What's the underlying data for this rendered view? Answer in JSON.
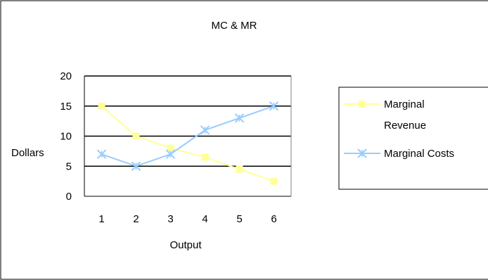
{
  "chart_data": {
    "type": "line",
    "title": "MC & MR",
    "xlabel": "Output",
    "ylabel": "Dollars",
    "categories": [
      "1",
      "2",
      "3",
      "4",
      "5",
      "6"
    ],
    "ylim": [
      0,
      20
    ],
    "yticks": [
      "0",
      "5",
      "10",
      "15",
      "20"
    ],
    "grid": "horizontal major gridlines",
    "legend_position": "right",
    "series": [
      {
        "name": "Marginal Revenue",
        "name_lines": [
          "Marginal",
          "Revenue"
        ],
        "values": [
          15,
          10,
          8,
          6.5,
          4.5,
          2.5
        ],
        "color": "#ffff99",
        "marker": "square"
      },
      {
        "name": "Marginal Costs",
        "name_lines": [
          "Marginal Costs"
        ],
        "values": [
          7,
          5,
          7,
          11,
          13,
          15
        ],
        "color": "#99ccff",
        "marker": "x"
      }
    ]
  },
  "colors": {
    "background": "#ffffff",
    "frame": "#000000",
    "gridline": "#000000"
  }
}
